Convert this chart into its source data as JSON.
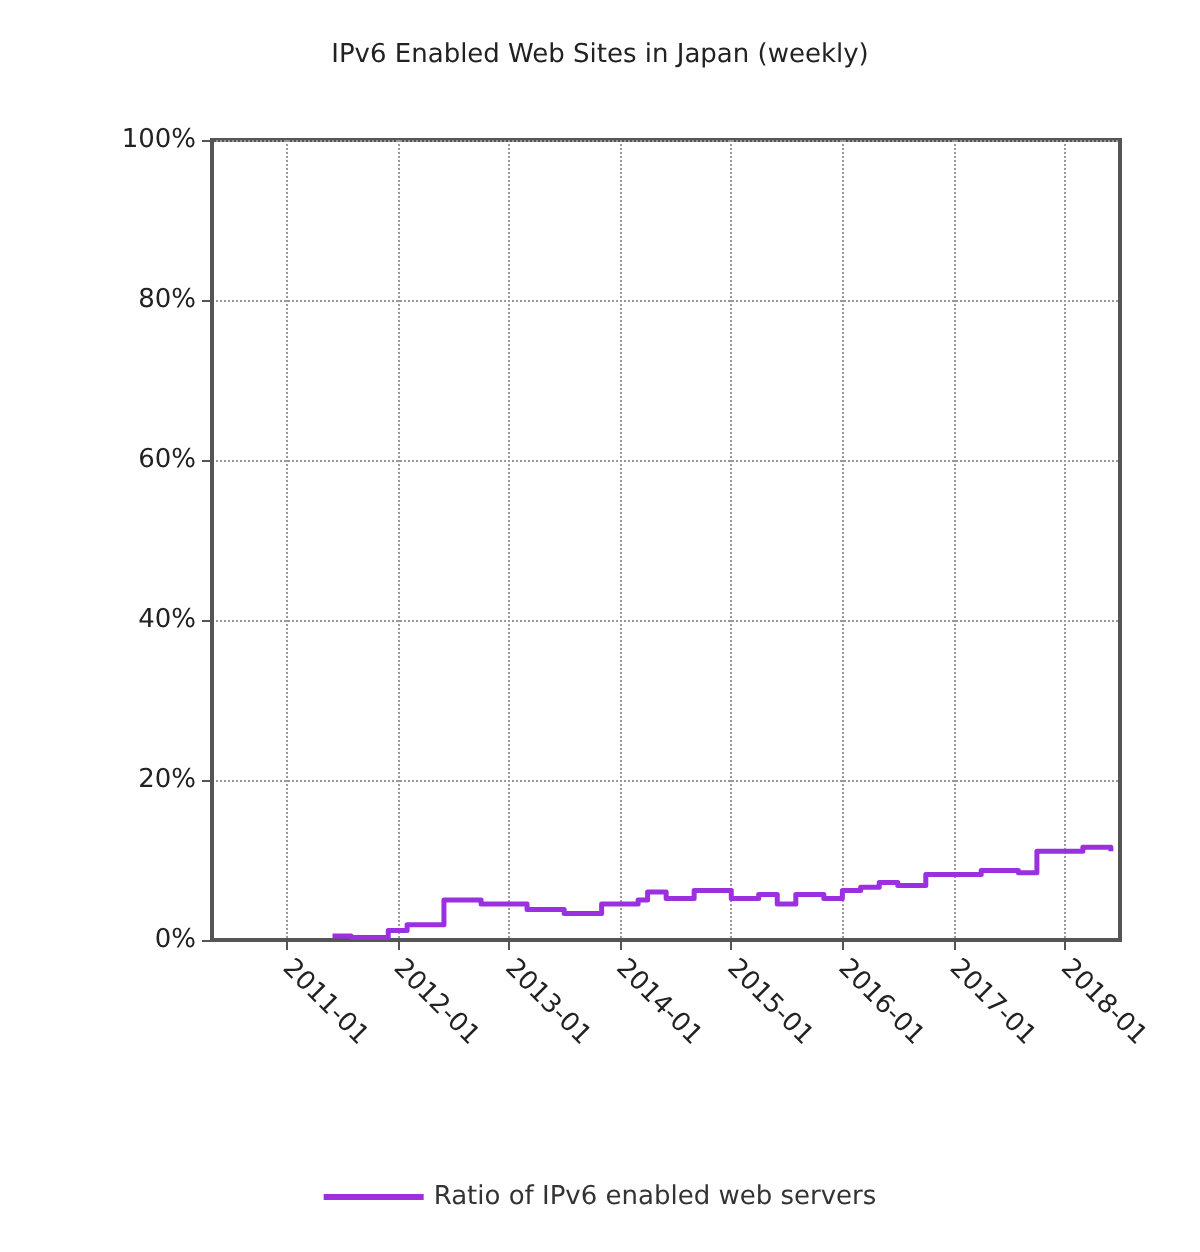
{
  "chart_data": {
    "type": "step",
    "title": "IPv6 Enabled Web Sites in Japan (weekly)",
    "x": [
      "2011-06",
      "2011-08",
      "2011-12",
      "2012-02",
      "2012-05",
      "2012-06",
      "2012-10",
      "2013-03",
      "2013-07",
      "2013-11",
      "2014-03",
      "2014-04",
      "2014-06",
      "2014-09",
      "2015-01",
      "2015-04",
      "2015-06",
      "2015-08",
      "2015-11",
      "2016-01",
      "2016-03",
      "2016-05",
      "2016-07",
      "2016-10",
      "2017-04",
      "2017-08",
      "2017-10",
      "2018-03",
      "2018-06"
    ],
    "series": [
      {
        "name": "Ratio of IPv6 enabled web servers",
        "color": "#9b30e0",
        "values": [
          0.5,
          0.3,
          1.2,
          1.9,
          1.9,
          5.0,
          4.5,
          3.8,
          3.3,
          4.5,
          5.0,
          6.0,
          5.2,
          6.2,
          5.2,
          5.7,
          4.5,
          5.7,
          5.2,
          6.2,
          6.6,
          7.2,
          6.8,
          8.2,
          8.7,
          8.4,
          11.1,
          11.6,
          11.1
        ]
      }
    ],
    "xlim": [
      "2010-05",
      "2018-07"
    ],
    "xticks": [
      "2011-01",
      "2012-01",
      "2013-01",
      "2014-01",
      "2015-01",
      "2016-01",
      "2017-01",
      "2018-01"
    ],
    "ylim": [
      0,
      100
    ],
    "yticks": [
      {
        "value": 0,
        "label": "0%"
      },
      {
        "value": 20,
        "label": "20%"
      },
      {
        "value": 40,
        "label": "40%"
      },
      {
        "value": 60,
        "label": "60%"
      },
      {
        "value": 80,
        "label": "80%"
      },
      {
        "value": 100,
        "label": "100%"
      }
    ],
    "grid": true,
    "legend": "bottom",
    "line_style": "solid",
    "marker": "none"
  }
}
